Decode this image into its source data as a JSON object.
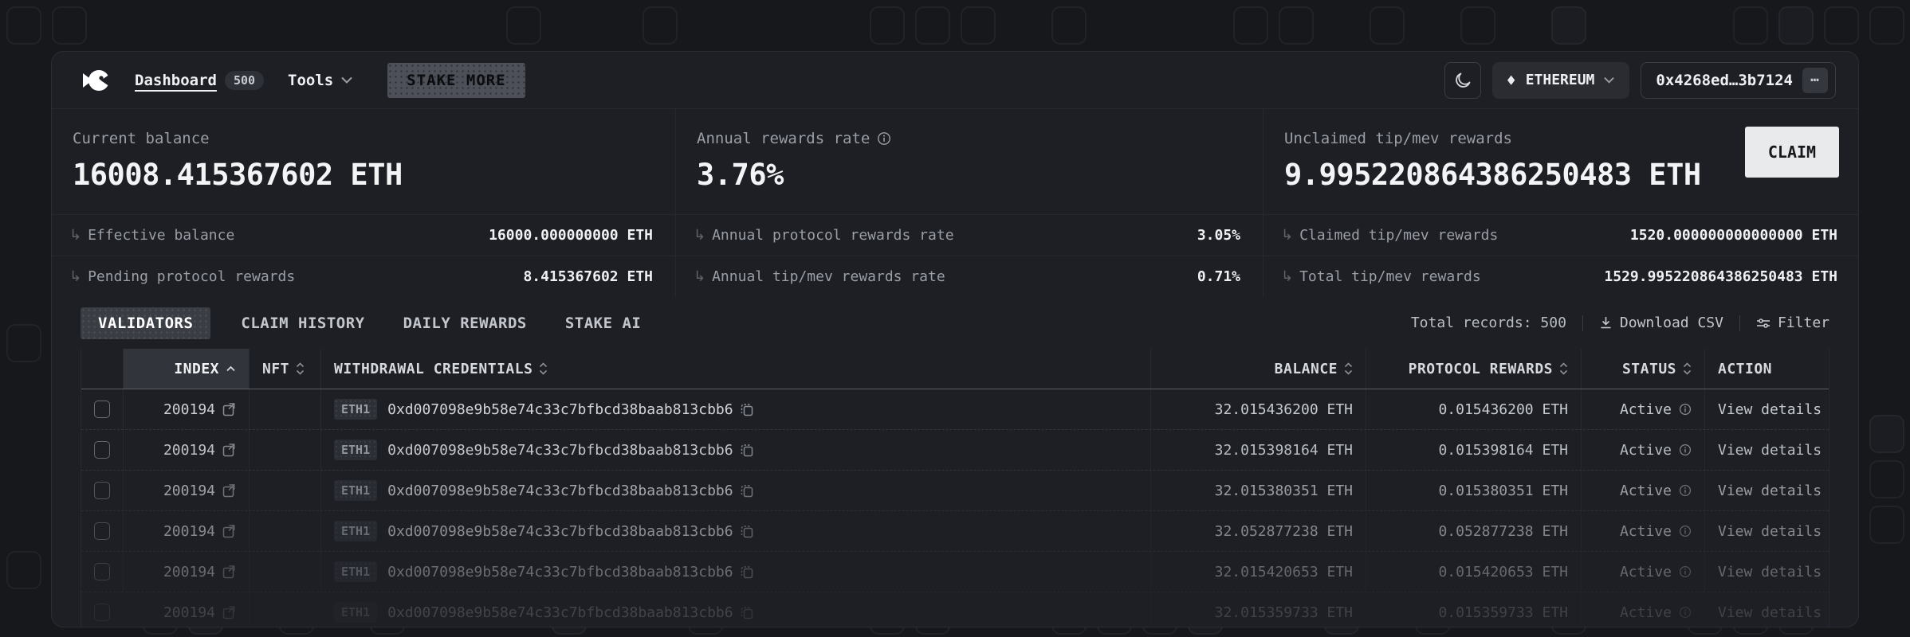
{
  "nav": {
    "brand": "fish-logo",
    "dashboard_label": "Dashboard",
    "dashboard_badge": "500",
    "tools_label": "Tools",
    "stake_more_label": "STAKE MORE",
    "network_label": "ETHEREUM",
    "network_glyph": "♦",
    "wallet_address": "0x4268ed…3b7124",
    "wallet_menu_glyph": "⋯"
  },
  "stats": {
    "cards": [
      {
        "label": "Current balance",
        "value": "16008.415367602 ETH",
        "subs": [
          {
            "label": "Effective balance",
            "value": "16000.000000000 ETH"
          },
          {
            "label": "Pending protocol rewards",
            "value": "8.415367602 ETH"
          }
        ]
      },
      {
        "label": "Annual rewards rate",
        "value": "3.76%",
        "subs": [
          {
            "label": "Annual protocol rewards rate",
            "value": "3.05%"
          },
          {
            "label": "Annual tip/mev rewards rate",
            "value": "0.71%"
          }
        ]
      },
      {
        "label": "Unclaimed tip/mev rewards",
        "value": "9.995220864386250483 ETH",
        "claim_label": "CLAIM",
        "subs": [
          {
            "label": "Claimed tip/mev rewards",
            "value": "1520.000000000000000 ETH"
          },
          {
            "label": "Total tip/mev rewards",
            "value": "1529.995220864386250483 ETH"
          }
        ]
      }
    ],
    "sub_arrow_glyph": "↳"
  },
  "tabs": [
    {
      "label": "VALIDATORS",
      "active": true
    },
    {
      "label": "CLAIM HISTORY",
      "active": false
    },
    {
      "label": "DAILY REWARDS",
      "active": false
    },
    {
      "label": "STAKE AI",
      "active": false
    }
  ],
  "toolbar": {
    "total_records": "Total records: 500",
    "download_label": "Download CSV",
    "filter_label": "Filter"
  },
  "table": {
    "columns": {
      "index": "INDEX",
      "nft": "NFT",
      "withdrawal_credentials": "WITHDRAWAL CREDENTIALS",
      "balance": "BALANCE",
      "protocol_rewards": "PROTOCOL REWARDS",
      "status": "STATUS",
      "action": "ACTION"
    },
    "rows": [
      {
        "index": "200194",
        "credential_type": "ETH1",
        "withdrawal_address": "0xd007098e9b58e74c33c7bfbcd38baab813cbb6",
        "balance": "32.015436200 ETH",
        "protocol_rewards": "0.015436200 ETH",
        "status": "Active",
        "action": "View details"
      },
      {
        "index": "200194",
        "credential_type": "ETH1",
        "withdrawal_address": "0xd007098e9b58e74c33c7bfbcd38baab813cbb6",
        "balance": "32.015398164 ETH",
        "protocol_rewards": "0.015398164 ETH",
        "status": "Active",
        "action": "View details"
      },
      {
        "index": "200194",
        "credential_type": "ETH1",
        "withdrawal_address": "0xd007098e9b58e74c33c7bfbcd38baab813cbb6",
        "balance": "32.015380351 ETH",
        "protocol_rewards": "0.015380351 ETH",
        "status": "Active",
        "action": "View details"
      },
      {
        "index": "200194",
        "credential_type": "ETH1",
        "withdrawal_address": "0xd007098e9b58e74c33c7bfbcd38baab813cbb6",
        "balance": "32.052877238 ETH",
        "protocol_rewards": "0.052877238 ETH",
        "status": "Active",
        "action": "View details"
      },
      {
        "index": "200194",
        "credential_type": "ETH1",
        "withdrawal_address": "0xd007098e9b58e74c33c7bfbcd38baab813cbb6",
        "balance": "32.015420653 ETH",
        "protocol_rewards": "0.015420653 ETH",
        "status": "Active",
        "action": "View details"
      },
      {
        "index": "200194",
        "credential_type": "ETH1",
        "withdrawal_address": "0xd007098e9b58e74c33c7bfbcd38baab813cbb6",
        "balance": "32.015359733 ETH",
        "protocol_rewards": "0.015359733 ETH",
        "status": "Active",
        "action": "View details"
      }
    ]
  },
  "colors": {
    "page_bg": "#17181c",
    "panel_bg": "#1d1f24",
    "accent_light": "#e9eaec",
    "muted_text": "#9a9ea6",
    "border": "#26282e"
  },
  "icons": {
    "logo": "fish-logo-icon",
    "theme": "moon-icon",
    "network": "eth-diamond-icon",
    "download": "download-icon",
    "filter": "filter-icon",
    "external": "external-link-icon",
    "copy": "copy-icon",
    "info": "info-circle-icon",
    "sort": "sort-updown-icon",
    "sort_asc": "sort-asc-icon",
    "chevron": "chevron-down-icon"
  }
}
